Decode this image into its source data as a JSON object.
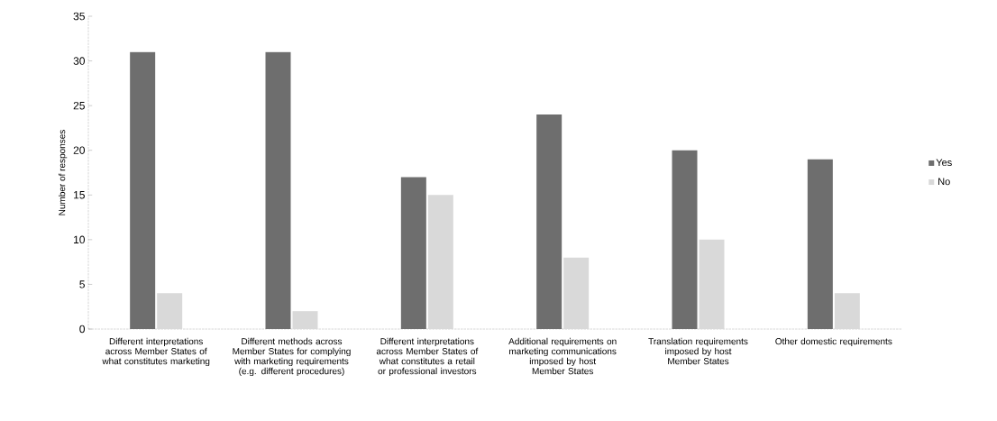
{
  "chart_data": {
    "type": "bar",
    "ylabel": "Number of responses",
    "categories": [
      "Different interpretations across Member States of what constitutes marketing",
      "Different methods across Member States for complying with marketing requirements (e.g. different procedures)",
      "Different interpretations across Member States of what constitutes a retail or professional investors",
      "Additional requirements on marketing communications imposed by host Member States",
      "Translation requirements imposed by host Member States",
      "Other domestic requirements"
    ],
    "series": [
      {
        "name": "Yes",
        "color": "#6e6e6e",
        "values": [
          31,
          31,
          17,
          24,
          20,
          19
        ]
      },
      {
        "name": "No",
        "color": "#d9d9d9",
        "values": [
          4,
          2,
          15,
          8,
          10,
          4
        ]
      }
    ],
    "ylim": [
      0,
      35
    ],
    "yticks": [
      0,
      5,
      10,
      15,
      20,
      25,
      30,
      35
    ],
    "grid": false,
    "legend": "right"
  }
}
